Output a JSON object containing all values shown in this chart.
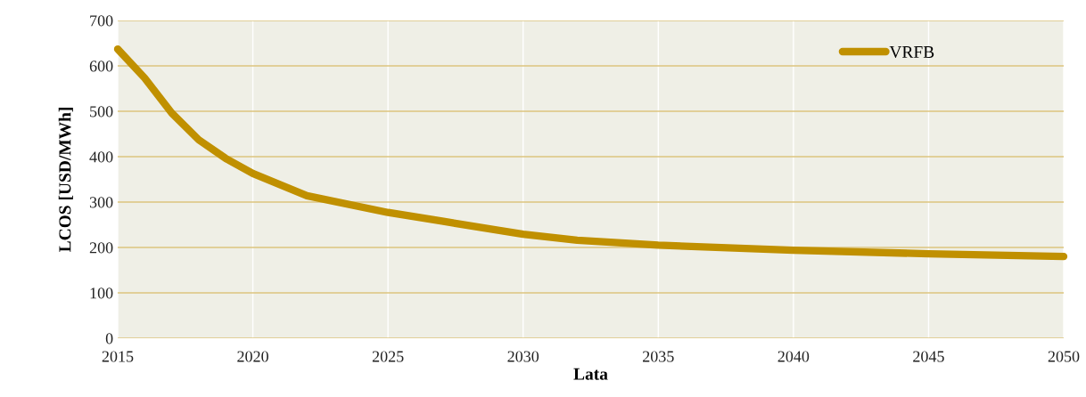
{
  "chart_data": {
    "type": "line",
    "xlabel": "Lata",
    "ylabel": "LCOS [USD/MWh]",
    "x": [
      2015,
      2016,
      2017,
      2018,
      2019,
      2020,
      2022,
      2025,
      2027,
      2030,
      2032,
      2035,
      2040,
      2045,
      2050
    ],
    "series": [
      {
        "name": "VRFB",
        "color": "#c09000",
        "values": [
          637,
          573,
          496,
          437,
          396,
          363,
          314,
          277,
          258,
          229,
          216,
          205,
          194,
          186,
          180
        ]
      }
    ],
    "xlim": [
      2015,
      2050
    ],
    "xticks": [
      2015,
      2020,
      2025,
      2030,
      2035,
      2040,
      2045,
      2050
    ],
    "ylim": [
      0,
      700
    ],
    "yticks": [
      0,
      100,
      200,
      300,
      400,
      500,
      600,
      700
    ],
    "grid": true,
    "legend": "top right",
    "marker": "none",
    "line_style": "solid"
  }
}
